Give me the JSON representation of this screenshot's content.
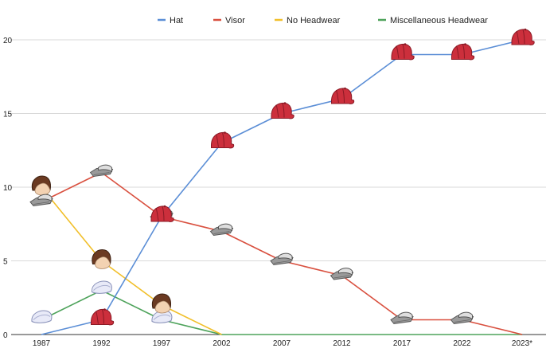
{
  "chart_data": {
    "type": "line",
    "title": "",
    "xlabel": "",
    "ylabel": "",
    "categories": [
      "1987",
      "1992",
      "1997",
      "2002",
      "2007",
      "2012",
      "2017",
      "2022",
      "2023*"
    ],
    "ylim": [
      0,
      20
    ],
    "yticks": [
      "0",
      "5",
      "10",
      "15",
      "20"
    ],
    "grid": true,
    "legend_position": "top",
    "series": [
      {
        "name": "Hat",
        "color": "#5b8ed6",
        "marker_icon": "red-cap-icon",
        "values": [
          0,
          1,
          8,
          13,
          15,
          16,
          19,
          19,
          20
        ],
        "icon_from": 1
      },
      {
        "name": "Visor",
        "color": "#d9503f",
        "marker_icon": "visor-icon",
        "values": [
          9,
          11,
          8,
          7,
          5,
          4,
          1,
          1,
          0
        ],
        "icon_to": 7
      },
      {
        "name": "No Headwear",
        "color": "#f1bf2a",
        "marker_icon": "hair-icon",
        "values": [
          10,
          5,
          2,
          0,
          null,
          null,
          null,
          null,
          null
        ],
        "icon_to": 2
      },
      {
        "name": "Miscellaneous Headwear",
        "color": "#4ea35b",
        "marker_icon": "flat-cap-icon",
        "values": [
          1,
          3,
          1,
          0,
          0,
          0,
          0,
          0,
          0
        ],
        "icon_to": 2
      }
    ]
  }
}
